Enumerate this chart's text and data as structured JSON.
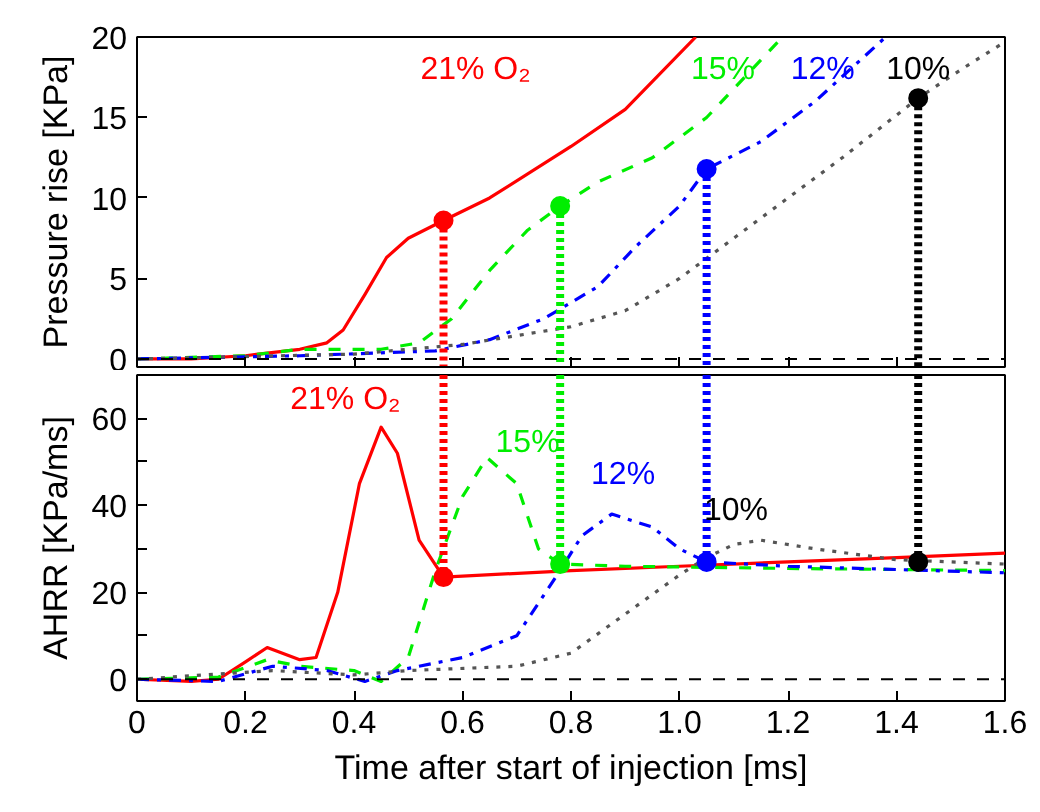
{
  "chart_data": [
    {
      "type": "line",
      "ylabel": "Pressure rise [KPa]",
      "xlim": [
        0,
        1.6
      ],
      "ylim": [
        -0.5,
        20
      ],
      "xticks": [
        0,
        0.2,
        0.4,
        0.6,
        0.8,
        1.0,
        1.2,
        1.4,
        1.6
      ],
      "yticks": [
        0,
        5,
        10,
        15,
        20
      ],
      "tick_labels": "y",
      "ref_lines": [
        {
          "axis": "y",
          "value": 0,
          "color": "#000000",
          "line_style": "dashed"
        }
      ],
      "annotations": [
        "21% O₂",
        "15%",
        "12%",
        "10%"
      ],
      "series": [
        {
          "type": "line",
          "line_style": "solid",
          "color": "#ff0000",
          "x": [
            0,
            0.1,
            0.2,
            0.3,
            0.35,
            0.38,
            0.42,
            0.46,
            0.5,
            0.565,
            0.65,
            0.8,
            0.9,
            1.03
          ],
          "values": [
            0,
            0,
            0.2,
            0.6,
            1.0,
            1.8,
            4,
            6.3,
            7.5,
            8.6,
            10,
            13.2,
            15.5,
            20
          ]
        },
        {
          "type": "line",
          "line_style": "dashed",
          "color": "#00ee00",
          "x": [
            0,
            0.2,
            0.3,
            0.45,
            0.52,
            0.58,
            0.65,
            0.72,
            0.78,
            0.85,
            0.95,
            1.05,
            1.12,
            1.19
          ],
          "values": [
            0,
            0.2,
            0.6,
            0.6,
            1.0,
            2.5,
            5.5,
            8.0,
            9.5,
            11,
            12.5,
            15,
            17.5,
            20
          ]
        },
        {
          "type": "line",
          "line_style": "dashdot",
          "color": "#0000ff",
          "x": [
            0,
            0.3,
            0.55,
            0.65,
            0.75,
            0.85,
            0.92,
            1.0,
            1.05,
            1.15,
            1.25,
            1.38
          ],
          "values": [
            0,
            0.2,
            0.5,
            1.2,
            2.5,
            4.5,
            7,
            9.5,
            11.8,
            13.5,
            16,
            20
          ]
        },
        {
          "type": "line",
          "line_style": "dotted",
          "color": "#555555",
          "x": [
            0,
            0.4,
            0.6,
            0.8,
            0.9,
            1.0,
            1.1,
            1.2,
            1.3,
            1.44,
            1.52,
            1.6
          ],
          "values": [
            0,
            0.3,
            0.9,
            2,
            3,
            5,
            7.5,
            10,
            12.5,
            16.2,
            18,
            19.7
          ]
        },
        {
          "type": "line",
          "line_style": "dotted",
          "color": "#ff0000",
          "x": [
            0.565,
            0.565
          ],
          "values": [
            8.6,
            -0.5
          ]
        },
        {
          "type": "line",
          "line_style": "dotted",
          "color": "#00ee00",
          "x": [
            0.78,
            0.78
          ],
          "values": [
            9.5,
            -0.5
          ]
        },
        {
          "type": "line",
          "line_style": "dotted",
          "color": "#0000ff",
          "x": [
            1.05,
            1.05
          ],
          "values": [
            11.8,
            -0.5
          ]
        },
        {
          "type": "line",
          "line_style": "dotted",
          "color": "#000000",
          "x": [
            1.44,
            1.44
          ],
          "values": [
            16.2,
            -0.5
          ]
        },
        {
          "type": "scatter",
          "marker": "circle",
          "colors": [
            "#ff0000",
            "#00ee00",
            "#0000ff",
            "#000000"
          ],
          "x": [
            0.565,
            0.78,
            1.05,
            1.44
          ],
          "values": [
            8.6,
            9.5,
            11.8,
            16.2
          ]
        }
      ]
    },
    {
      "type": "line",
      "xlabel": "Time after start of injection [ms]",
      "ylabel": "AHRR [KPa/ms]",
      "xlim": [
        0,
        1.6
      ],
      "ylim": [
        -5,
        70
      ],
      "xticks": [
        0,
        {
          "value": 0.2,
          "label": "0.2"
        },
        {
          "value": 0.4,
          "label": "0.4"
        },
        {
          "value": 0.6,
          "label": "0.6"
        },
        {
          "value": 0.8,
          "label": "0.8"
        },
        {
          "value": 1.0,
          "label": "1.0"
        },
        {
          "value": 1.2,
          "label": "1.2"
        },
        {
          "value": 1.4,
          "label": "1.4"
        },
        {
          "value": 1.6,
          "label": "1.6"
        }
      ],
      "yticks": [
        0,
        {
          "value": 10,
          "label": null
        },
        20,
        {
          "value": 30,
          "label": null
        },
        40,
        {
          "value": 50,
          "label": null
        },
        60
      ],
      "ref_lines": [
        {
          "axis": "y",
          "value": 0,
          "color": "#000000",
          "line_style": "dashed"
        }
      ],
      "annotations": [
        "21% O₂",
        "15%",
        "12%",
        "10%"
      ],
      "series": [
        {
          "type": "line",
          "line_style": "solid",
          "color": "#ff0000",
          "x": [
            0,
            0.1,
            0.15,
            0.2,
            0.24,
            0.3,
            0.33,
            0.37,
            0.41,
            0.45,
            0.48,
            0.52,
            0.565,
            0.8,
            1.0,
            1.2,
            1.4,
            1.6
          ],
          "values": [
            0,
            -0.5,
            0,
            4,
            7.3,
            4.5,
            5,
            20,
            45,
            58,
            52,
            32,
            23.5,
            25,
            26,
            27,
            28,
            29
          ]
        },
        {
          "type": "line",
          "line_style": "dashed",
          "color": "#00ee00",
          "x": [
            0,
            0.15,
            0.24,
            0.3,
            0.4,
            0.45,
            0.5,
            0.55,
            0.6,
            0.645,
            0.7,
            0.74,
            0.78,
            0.9,
            1.2,
            1.6
          ],
          "values": [
            0,
            0.5,
            4.5,
            3,
            2,
            -0.5,
            5,
            25,
            42,
            51,
            45,
            30,
            26.5,
            26,
            25.5,
            25
          ]
        },
        {
          "type": "line",
          "line_style": "dashdot",
          "color": "#0000ff",
          "x": [
            0,
            0.15,
            0.25,
            0.35,
            0.42,
            0.48,
            0.6,
            0.7,
            0.78,
            0.82,
            0.875,
            0.95,
            1.0,
            1.05,
            1.2,
            1.6
          ],
          "values": [
            0,
            -0.5,
            3,
            2,
            -0.5,
            2,
            5,
            10,
            25,
            33,
            38,
            35,
            30,
            27,
            26,
            24.5
          ]
        },
        {
          "type": "line",
          "line_style": "dotted",
          "color": "#555555",
          "x": [
            0,
            0.25,
            0.4,
            0.5,
            0.7,
            0.8,
            0.9,
            1.0,
            1.05,
            1.1,
            1.15,
            1.25,
            1.4,
            1.6
          ],
          "values": [
            0,
            2,
            1,
            2,
            3,
            6,
            15,
            24,
            28,
            31,
            32,
            30,
            27.5,
            26.5
          ]
        },
        {
          "type": "line",
          "line_style": "dotted",
          "color": "#ff0000",
          "x": [
            0.565,
            0.565
          ],
          "values": [
            70,
            23.5
          ]
        },
        {
          "type": "line",
          "line_style": "dotted",
          "color": "#00ee00",
          "x": [
            0.78,
            0.78
          ],
          "values": [
            70,
            26.5
          ]
        },
        {
          "type": "line",
          "line_style": "dotted",
          "color": "#0000ff",
          "x": [
            1.05,
            1.05
          ],
          "values": [
            70,
            27
          ]
        },
        {
          "type": "line",
          "line_style": "dotted",
          "color": "#000000",
          "x": [
            1.44,
            1.44
          ],
          "values": [
            70,
            27
          ]
        },
        {
          "type": "scatter",
          "marker": "circle",
          "colors": [
            "#ff0000",
            "#00ee00",
            "#0000ff",
            "#000000"
          ],
          "x": [
            0.565,
            0.78,
            1.05,
            1.44
          ],
          "values": [
            23.5,
            26.5,
            27,
            27
          ]
        }
      ]
    }
  ]
}
